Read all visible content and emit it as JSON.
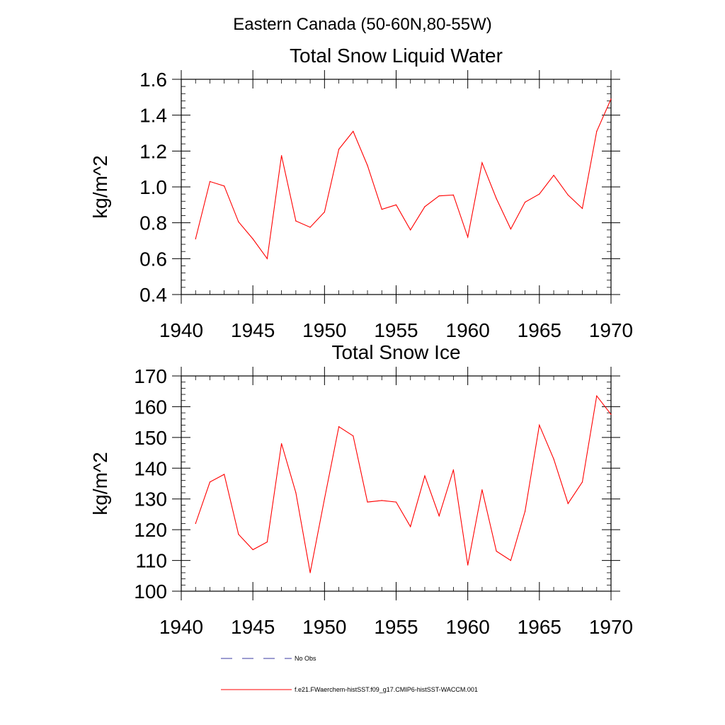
{
  "suptitle": "Eastern Canada (50-60N,80-55W)",
  "colors": {
    "series": "#ff0000",
    "obs": "#3a3aa0",
    "axis": "#000000"
  },
  "legend": {
    "obs_label": "No Obs",
    "model_label": "f.e21.FWaerchem-histSST.f09_g17.CMIP6-histSST-WACCM.001"
  },
  "chart_data": [
    {
      "type": "line",
      "title": "Total Snow Liquid Water",
      "xlabel": "",
      "ylabel": "kg/m^2",
      "xlim": [
        1940,
        1970
      ],
      "ylim": [
        0.4,
        1.6
      ],
      "xticks": [
        1940,
        1945,
        1950,
        1955,
        1960,
        1965,
        1970
      ],
      "xtick_labels": [
        "1940",
        "1945",
        "1950",
        "1955",
        "1960",
        "1965",
        "1970"
      ],
      "yticks": [
        0.4,
        0.6,
        0.8,
        1.0,
        1.2,
        1.4,
        1.6
      ],
      "ytick_labels": [
        "0.4",
        "0.6",
        "0.8",
        "1.0",
        "1.2",
        "1.4",
        "1.6"
      ],
      "grid": false,
      "x": [
        1941,
        1942,
        1943,
        1944,
        1945,
        1946,
        1947,
        1948,
        1949,
        1950,
        1951,
        1952,
        1953,
        1954,
        1955,
        1956,
        1957,
        1958,
        1959,
        1960,
        1961,
        1962,
        1963,
        1964,
        1965,
        1966,
        1967,
        1968,
        1969,
        1970
      ],
      "series": [
        {
          "values": [
            0.71,
            1.03,
            1.005,
            0.805,
            0.71,
            0.6,
            1.175,
            0.81,
            0.775,
            0.86,
            1.21,
            1.31,
            1.12,
            0.875,
            0.9,
            0.76,
            0.89,
            0.95,
            0.955,
            0.72,
            1.135,
            0.935,
            0.765,
            0.915,
            0.96,
            1.065,
            0.955,
            0.88,
            1.31,
            1.49
          ]
        }
      ]
    },
    {
      "type": "line",
      "title": "Total Snow Ice",
      "xlabel": "",
      "ylabel": "kg/m^2",
      "xlim": [
        1940,
        1970
      ],
      "ylim": [
        100,
        170
      ],
      "xticks": [
        1940,
        1945,
        1950,
        1955,
        1960,
        1965,
        1970
      ],
      "xtick_labels": [
        "1940",
        "1945",
        "1950",
        "1955",
        "1960",
        "1965",
        "1970"
      ],
      "yticks": [
        100,
        110,
        120,
        130,
        140,
        150,
        160,
        170
      ],
      "ytick_labels": [
        "100",
        "110",
        "120",
        "130",
        "140",
        "150",
        "160",
        "170"
      ],
      "grid": false,
      "x": [
        1941,
        1942,
        1943,
        1944,
        1945,
        1946,
        1947,
        1948,
        1949,
        1950,
        1951,
        1952,
        1953,
        1954,
        1955,
        1956,
        1957,
        1958,
        1959,
        1960,
        1961,
        1962,
        1963,
        1964,
        1965,
        1966,
        1967,
        1968,
        1969,
        1970
      ],
      "series": [
        {
          "values": [
            122.0,
            135.5,
            138.0,
            118.5,
            113.5,
            116.0,
            148.0,
            132.0,
            106.0,
            130.0,
            153.5,
            150.5,
            129.0,
            129.5,
            129.0,
            121.0,
            137.5,
            124.5,
            139.5,
            108.5,
            133.0,
            113.0,
            110.0,
            126.0,
            154.0,
            143.0,
            128.5,
            135.5,
            163.5,
            157.5
          ]
        }
      ]
    }
  ]
}
